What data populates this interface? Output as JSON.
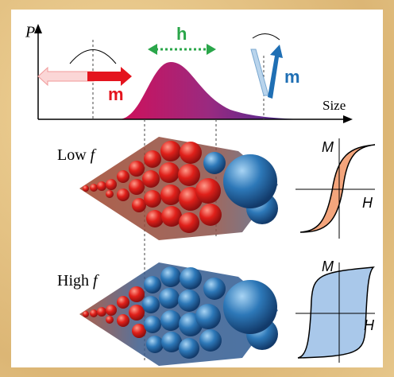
{
  "axis": {
    "y_label": "P",
    "x_label": "Size"
  },
  "distribution": {
    "label": "h"
  },
  "moments": {
    "left": "m",
    "right": "m"
  },
  "panels": [
    {
      "label": "Low",
      "label_italic": "f",
      "loop": {
        "y_label": "M",
        "x_label": "H"
      }
    },
    {
      "label": "High",
      "label_italic": "f",
      "loop": {
        "y_label": "M",
        "x_label": "H"
      }
    }
  ]
}
